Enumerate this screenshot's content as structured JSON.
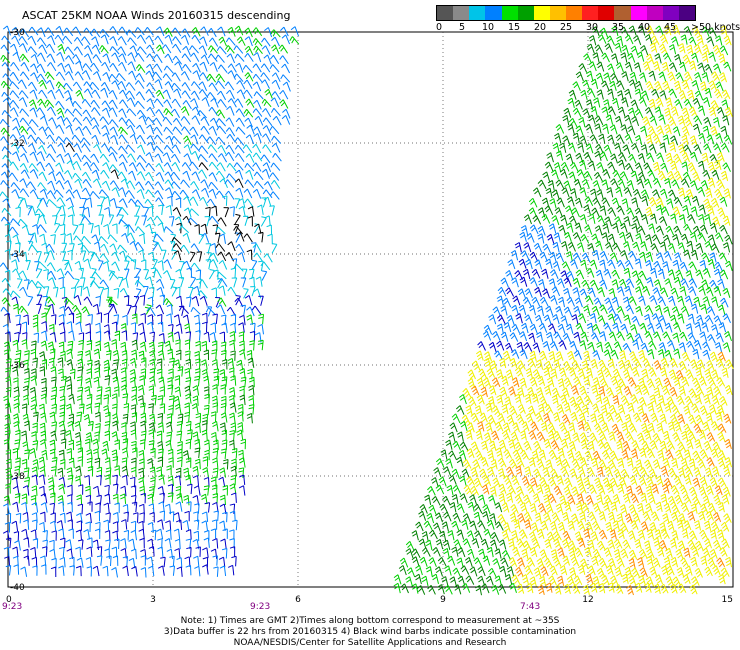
{
  "title": "ASCAT 25KM NOAA Winds 20160315 descending",
  "legend": {
    "labels": [
      "0",
      "5",
      "10",
      "15",
      "20",
      "25",
      "30",
      "35",
      "40",
      "45",
      ">50 knots"
    ],
    "colors": [
      "#555555",
      "#8a8a8a",
      "#00c4e8",
      "#0080ff",
      "#00e000",
      "#00a000",
      "#ffff00",
      "#ffc000",
      "#ff8000",
      "#ff2020",
      "#e00000",
      "#b06030",
      "#ff00ff",
      "#c000c0",
      "#8000c0",
      "#4b0082"
    ]
  },
  "map": {
    "y_axis": {
      "labels": [
        "-30",
        "-32",
        "-34",
        "-36",
        "-38",
        "-40"
      ],
      "values": [
        -30,
        -32,
        -34,
        -36,
        -38,
        -40
      ]
    },
    "x_axis": {
      "labels": [
        "0",
        "3",
        "6",
        "9",
        "12",
        "15"
      ],
      "values": [
        0,
        3,
        6,
        9,
        12,
        15
      ]
    },
    "pass_times": [
      "9:23",
      "9:23",
      "7:43"
    ],
    "grid": true,
    "wind_colors": {
      "black": "#000000",
      "cyan": "#00c8e0",
      "light_blue": "#0080ff",
      "dark_blue": "#0000c8",
      "green": "#00d000",
      "dark_green": "#008000",
      "yellow": "#f0f000",
      "orange": "#ff9000"
    }
  },
  "notes": {
    "line1": "Note: 1) Times are GMT 2)Times along bottom correspond to measurement at ~35S",
    "line2": "3)Data buffer is 22 hrs from 20160315 4) Black wind barbs indicate possible contamination",
    "line3": "NOAA/NESDIS/Center for Satellite Applications and Research"
  }
}
